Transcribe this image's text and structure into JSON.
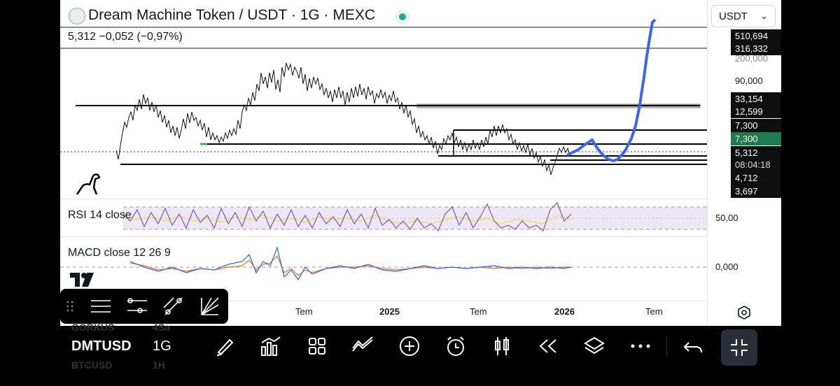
{
  "header": {
    "title": "Dream Machine Token / USDT · 1G · MEXC",
    "values": "5,312  −0,052 (−0,97%)",
    "currency_select": "USDT"
  },
  "price_scale": {
    "labels": [
      {
        "text": "510,694",
        "style": "dark"
      },
      {
        "text": "316,332",
        "style": "dark"
      },
      {
        "text": "200,000",
        "style": "plain"
      },
      {
        "text": "90,000",
        "style": "plain"
      },
      {
        "text": "33,154",
        "style": "dark"
      },
      {
        "text": "12,599",
        "style": "dark"
      },
      {
        "text": "7,300",
        "style": "dark"
      },
      {
        "text": "7,300",
        "style": "green"
      },
      {
        "text": "5,312",
        "style": "dark"
      },
      {
        "text": "08:04:18",
        "style": "dark"
      },
      {
        "text": "4,712",
        "style": "dark"
      },
      {
        "text": "3,697",
        "style": "dark"
      }
    ]
  },
  "rsi": {
    "title": "RSI 14 close",
    "level": "50,00"
  },
  "macd": {
    "title": "MACD close  12  26  9",
    "level": "0,000"
  },
  "time_axis": {
    "labels": [
      "Tem",
      "2025",
      "Tem",
      "2026",
      "Tem"
    ]
  },
  "bottom_bar": {
    "symbol": "DMTUSD",
    "timeframe": "1G",
    "ghost_row1_symbol": "GORKUS",
    "ghost_row1_tf": "4Sa",
    "ghost_row2_symbol": "BTCUSD",
    "ghost_row2_tf": "1H"
  },
  "colors": {
    "projection": "#3b63f5",
    "accent_green": "#1f7a4d",
    "rsi_line": "#7e57c2",
    "rsi_signal": "#f2dd3a",
    "macd_line": "#2962ff",
    "signal_line": "#ff6d00"
  }
}
